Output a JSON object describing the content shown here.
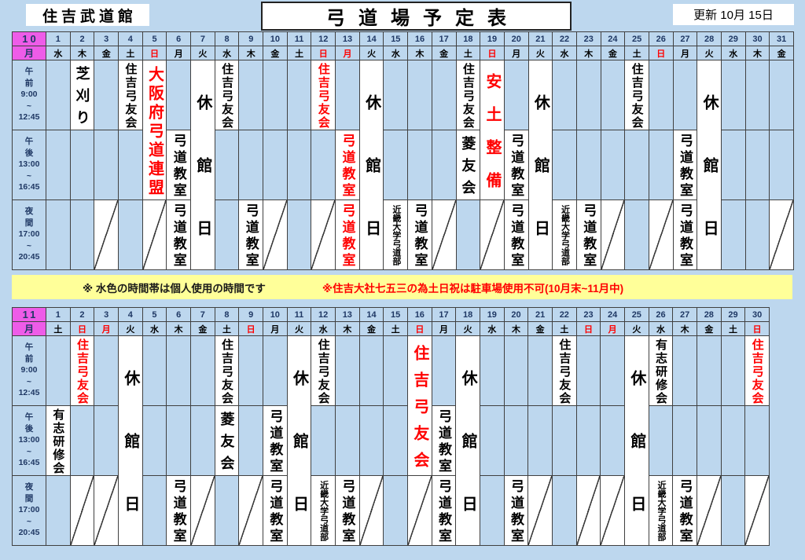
{
  "header": {
    "venue": "住吉武道館",
    "title": "弓道場予定表",
    "updated": "更新 10月 15日"
  },
  "notes": {
    "personal_use": "※ 水色の時間帯は個人使用の時間です",
    "parking": "※住吉大社七五三の為土日祝は駐車場使用不可(10月末~11月中)"
  },
  "colors": {
    "page_bg": "#BDD7EE",
    "cell_blue": "#BDD7EE",
    "cell_white": "#FFFFFF",
    "month_magenta": "#EE5CE8",
    "note_yellow": "#FFFF99",
    "red_text": "#FF0000",
    "grid_line": "#404040",
    "number_navy": "#1F3864"
  },
  "time_slots": [
    {
      "id": "am",
      "lines": [
        "午",
        "前",
        "9:00",
        "~",
        "12:45"
      ]
    },
    {
      "id": "pm",
      "lines": [
        "午",
        "後",
        "13:00",
        "~",
        "16:45"
      ]
    },
    {
      "id": "eve",
      "lines": [
        "夜",
        "間",
        "17:00",
        "~",
        "20:45"
      ]
    }
  ],
  "months": [
    {
      "number": "10",
      "unit": "月",
      "days": [
        {
          "n": 1,
          "w": "水"
        },
        {
          "n": 2,
          "w": "木"
        },
        {
          "n": 3,
          "w": "金"
        },
        {
          "n": 4,
          "w": "土"
        },
        {
          "n": 5,
          "w": "日",
          "red": true
        },
        {
          "n": 6,
          "w": "月"
        },
        {
          "n": 7,
          "w": "火"
        },
        {
          "n": 8,
          "w": "水"
        },
        {
          "n": 9,
          "w": "木"
        },
        {
          "n": 10,
          "w": "金"
        },
        {
          "n": 11,
          "w": "土"
        },
        {
          "n": 12,
          "w": "日",
          "red": true
        },
        {
          "n": 13,
          "w": "月",
          "red": true
        },
        {
          "n": 14,
          "w": "火"
        },
        {
          "n": 15,
          "w": "水"
        },
        {
          "n": 16,
          "w": "木"
        },
        {
          "n": 17,
          "w": "金"
        },
        {
          "n": 18,
          "w": "土"
        },
        {
          "n": 19,
          "w": "日",
          "red": true
        },
        {
          "n": 20,
          "w": "月"
        },
        {
          "n": 21,
          "w": "火"
        },
        {
          "n": 22,
          "w": "水"
        },
        {
          "n": 23,
          "w": "木"
        },
        {
          "n": 24,
          "w": "金"
        },
        {
          "n": 25,
          "w": "土"
        },
        {
          "n": 26,
          "w": "日",
          "red": true
        },
        {
          "n": 27,
          "w": "月"
        },
        {
          "n": 28,
          "w": "火"
        },
        {
          "n": 29,
          "w": "水"
        },
        {
          "n": 30,
          "w": "木"
        },
        {
          "n": 31,
          "w": "金"
        }
      ],
      "entries": [
        {
          "day": 2,
          "slot": "am",
          "text": "芝刈り"
        },
        {
          "day": 3,
          "slot": "eve",
          "slash": true
        },
        {
          "day": 4,
          "slot": "am",
          "text": "住吉弓友会"
        },
        {
          "day": 5,
          "slot": "ampm",
          "text": "大阪府弓道連盟",
          "red": true
        },
        {
          "day": 5,
          "slot": "eve",
          "slash": true
        },
        {
          "day": 6,
          "slot": "pm",
          "text": "弓道教室"
        },
        {
          "day": 6,
          "slot": "eve",
          "text": "弓道教室"
        },
        {
          "day": 7,
          "slot": "all",
          "text": "休館日"
        },
        {
          "day": 8,
          "slot": "am",
          "text": "住吉弓友会"
        },
        {
          "day": 9,
          "slot": "eve",
          "text": "弓道教室"
        },
        {
          "day": 10,
          "slot": "eve",
          "slash": true
        },
        {
          "day": 12,
          "slot": "am",
          "text": "住吉弓友会",
          "red": true
        },
        {
          "day": 12,
          "slot": "eve",
          "slash": true
        },
        {
          "day": 13,
          "slot": "pm",
          "text": "弓道教室",
          "red": true
        },
        {
          "day": 13,
          "slot": "eve",
          "text": "弓道教室",
          "red": true
        },
        {
          "day": 14,
          "slot": "all",
          "text": "休館日"
        },
        {
          "day": 15,
          "slot": "eve",
          "text": "近畿大学弓道部"
        },
        {
          "day": 16,
          "slot": "eve",
          "text": "弓道教室"
        },
        {
          "day": 17,
          "slot": "eve",
          "slash": true
        },
        {
          "day": 18,
          "slot": "am",
          "text": "住吉弓友会"
        },
        {
          "day": 18,
          "slot": "pm",
          "text": "菱友会"
        },
        {
          "day": 19,
          "slot": "ampm",
          "text": "安土整備",
          "red": true
        },
        {
          "day": 19,
          "slot": "eve",
          "slash": true
        },
        {
          "day": 20,
          "slot": "pm",
          "text": "弓道教室"
        },
        {
          "day": 20,
          "slot": "eve",
          "text": "弓道教室"
        },
        {
          "day": 21,
          "slot": "all",
          "text": "休館日"
        },
        {
          "day": 22,
          "slot": "eve",
          "text": "近畿大学弓道部"
        },
        {
          "day": 23,
          "slot": "eve",
          "text": "弓道教室"
        },
        {
          "day": 24,
          "slot": "eve",
          "slash": true
        },
        {
          "day": 25,
          "slot": "am",
          "text": "住吉弓友会"
        },
        {
          "day": 26,
          "slot": "eve",
          "slash": true
        },
        {
          "day": 27,
          "slot": "pm",
          "text": "弓道教室"
        },
        {
          "day": 27,
          "slot": "eve",
          "text": "弓道教室"
        },
        {
          "day": 28,
          "slot": "all",
          "text": "休館日"
        },
        {
          "day": 31,
          "slot": "eve",
          "slash": true
        }
      ]
    },
    {
      "number": "11",
      "unit": "月",
      "days": [
        {
          "n": 1,
          "w": "土"
        },
        {
          "n": 2,
          "w": "日",
          "red": true
        },
        {
          "n": 3,
          "w": "月",
          "red": true
        },
        {
          "n": 4,
          "w": "火"
        },
        {
          "n": 5,
          "w": "水"
        },
        {
          "n": 6,
          "w": "木"
        },
        {
          "n": 7,
          "w": "金"
        },
        {
          "n": 8,
          "w": "土"
        },
        {
          "n": 9,
          "w": "日",
          "red": true
        },
        {
          "n": 10,
          "w": "月"
        },
        {
          "n": 11,
          "w": "火"
        },
        {
          "n": 12,
          "w": "水"
        },
        {
          "n": 13,
          "w": "木"
        },
        {
          "n": 14,
          "w": "金"
        },
        {
          "n": 15,
          "w": "土"
        },
        {
          "n": 16,
          "w": "日",
          "red": true
        },
        {
          "n": 17,
          "w": "月"
        },
        {
          "n": 18,
          "w": "火"
        },
        {
          "n": 19,
          "w": "水"
        },
        {
          "n": 20,
          "w": "木"
        },
        {
          "n": 21,
          "w": "金"
        },
        {
          "n": 22,
          "w": "土"
        },
        {
          "n": 23,
          "w": "日",
          "red": true
        },
        {
          "n": 24,
          "w": "月",
          "red": true
        },
        {
          "n": 25,
          "w": "火"
        },
        {
          "n": 26,
          "w": "水"
        },
        {
          "n": 27,
          "w": "木"
        },
        {
          "n": 28,
          "w": "金"
        },
        {
          "n": 29,
          "w": "土"
        },
        {
          "n": 30,
          "w": "日",
          "red": true
        }
      ],
      "entries": [
        {
          "day": 1,
          "slot": "pm",
          "text": "有志研修会"
        },
        {
          "day": 2,
          "slot": "am",
          "text": "住吉弓友会",
          "red": true
        },
        {
          "day": 2,
          "slot": "eve",
          "slash": true
        },
        {
          "day": 3,
          "slot": "eve",
          "slash": true
        },
        {
          "day": 4,
          "slot": "all",
          "text": "休館日"
        },
        {
          "day": 6,
          "slot": "eve",
          "text": "弓道教室"
        },
        {
          "day": 7,
          "slot": "eve",
          "slash": true
        },
        {
          "day": 8,
          "slot": "am",
          "text": "住吉弓友会"
        },
        {
          "day": 8,
          "slot": "pm",
          "text": "菱友会"
        },
        {
          "day": 9,
          "slot": "eve",
          "slash": true
        },
        {
          "day": 10,
          "slot": "pm",
          "text": "弓道教室"
        },
        {
          "day": 10,
          "slot": "eve",
          "text": "弓道教室"
        },
        {
          "day": 11,
          "slot": "all",
          "text": "休館日"
        },
        {
          "day": 12,
          "slot": "am",
          "text": "住吉弓友会"
        },
        {
          "day": 12,
          "slot": "eve",
          "text": "近畿大学弓道部"
        },
        {
          "day": 13,
          "slot": "eve",
          "text": "弓道教室"
        },
        {
          "day": 14,
          "slot": "eve",
          "slash": true
        },
        {
          "day": 16,
          "slot": "ampm",
          "text": "住吉弓友会",
          "red": true
        },
        {
          "day": 16,
          "slot": "eve",
          "slash": true
        },
        {
          "day": 17,
          "slot": "pm",
          "text": "弓道教室"
        },
        {
          "day": 17,
          "slot": "eve",
          "text": "弓道教室"
        },
        {
          "day": 18,
          "slot": "all",
          "text": "休館日"
        },
        {
          "day": 20,
          "slot": "eve",
          "text": "弓道教室"
        },
        {
          "day": 21,
          "slot": "eve",
          "slash": true
        },
        {
          "day": 22,
          "slot": "am",
          "text": "住吉弓友会"
        },
        {
          "day": 23,
          "slot": "eve",
          "slash": true
        },
        {
          "day": 24,
          "slot": "eve",
          "slash": true
        },
        {
          "day": 25,
          "slot": "all",
          "text": "休館日"
        },
        {
          "day": 26,
          "slot": "am",
          "text": "有志研修会"
        },
        {
          "day": 26,
          "slot": "eve",
          "text": "近畿大学弓道部"
        },
        {
          "day": 27,
          "slot": "eve",
          "text": "弓道教室"
        },
        {
          "day": 28,
          "slot": "eve",
          "slash": true
        },
        {
          "day": 30,
          "slot": "am",
          "text": "住吉弓友会",
          "red": true
        },
        {
          "day": 30,
          "slot": "eve",
          "slash": true
        }
      ]
    }
  ]
}
